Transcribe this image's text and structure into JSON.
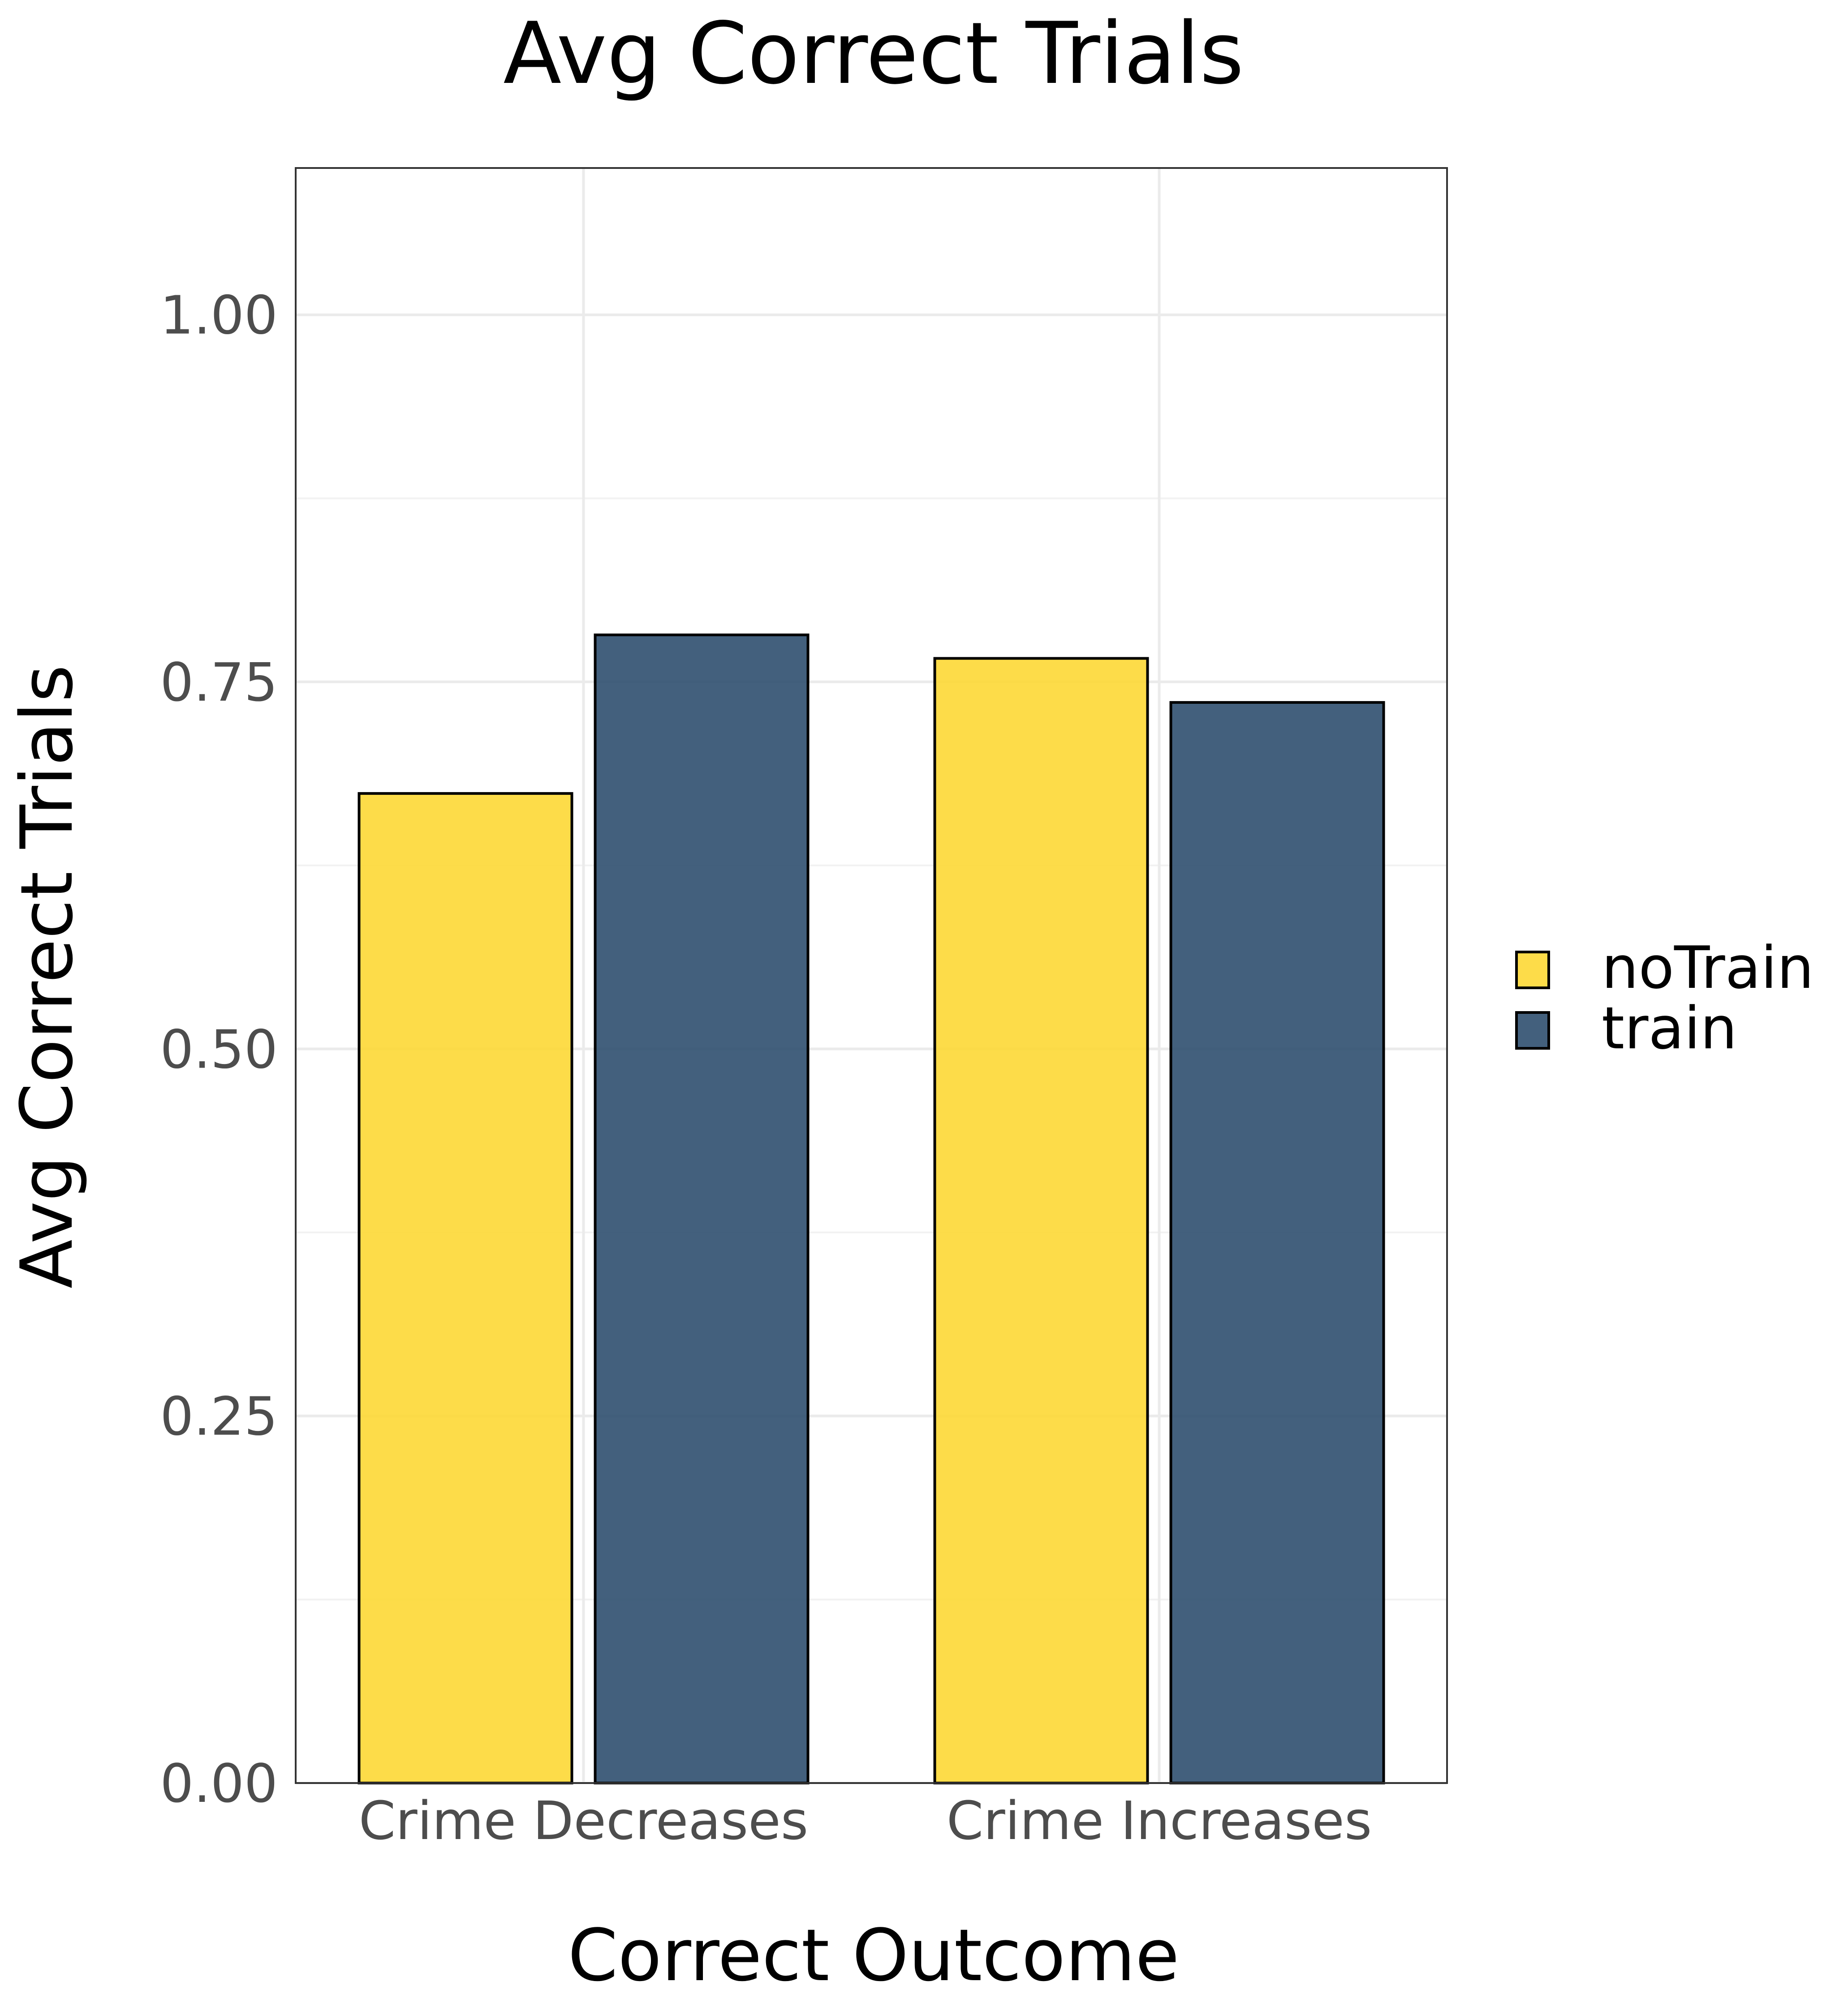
{
  "chart_data": {
    "type": "bar",
    "title": "Avg Correct Trials",
    "xlabel": "Correct Outcome",
    "ylabel": "Avg Correct Trials",
    "categories": [
      "Crime Decreases",
      "Crime Increases"
    ],
    "series": [
      {
        "name": "noTrain",
        "color": "#FDD835",
        "values": [
          0.674,
          0.766
        ]
      },
      {
        "name": "train",
        "color": "#2F4F6F",
        "values": [
          0.782,
          0.736
        ]
      }
    ],
    "ylim": [
      0,
      1.1
    ],
    "yticks": [
      0.0,
      0.25,
      0.5,
      0.75,
      1.0
    ],
    "ytick_labels": [
      "0.00",
      "0.25",
      "0.50",
      "0.75",
      "1.00"
    ],
    "grid": true,
    "legend_position": "right"
  }
}
